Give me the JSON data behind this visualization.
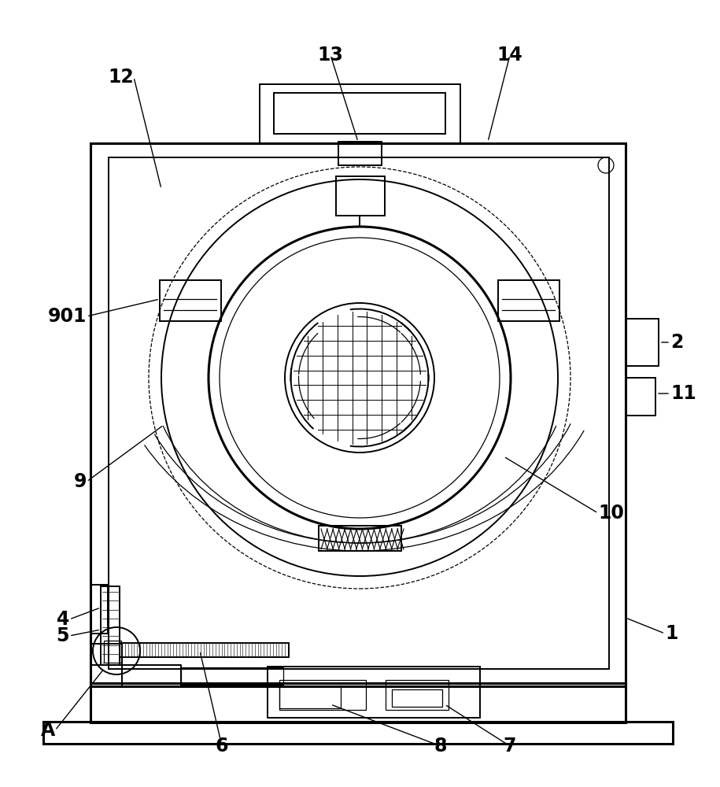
{
  "bg_color": "#ffffff",
  "line_color": "#000000",
  "label_color": "#000000",
  "fig_width": 9.15,
  "fig_height": 10.0
}
